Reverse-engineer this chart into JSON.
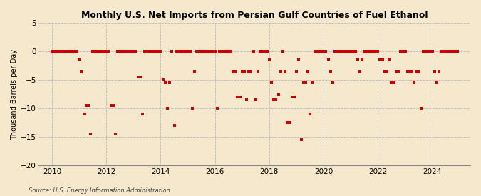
{
  "title": "Monthly U.S. Net Imports from Persian Gulf Countries of Fuel Ethanol",
  "ylabel": "Thousand Barrels per Day",
  "source": "Source: U.S. Energy Information Administration",
  "background_color": "#f5e8cc",
  "plot_bg_color": "#f5e8cc",
  "marker_color": "#cc0000",
  "ylim": [
    -20,
    5
  ],
  "yticks": [
    -20,
    -15,
    -10,
    -5,
    0,
    5
  ],
  "xlim_start": 2009.5,
  "xlim_end": 2025.4,
  "xticks": [
    2010,
    2012,
    2014,
    2016,
    2018,
    2020,
    2022,
    2024
  ],
  "data_points": [
    [
      2010.0,
      0
    ],
    [
      2010.08,
      0
    ],
    [
      2010.17,
      0
    ],
    [
      2010.25,
      0
    ],
    [
      2010.33,
      0
    ],
    [
      2010.42,
      0
    ],
    [
      2010.5,
      0
    ],
    [
      2010.58,
      0
    ],
    [
      2010.67,
      0
    ],
    [
      2010.75,
      0
    ],
    [
      2010.83,
      0
    ],
    [
      2010.92,
      0
    ],
    [
      2011.0,
      -1.5
    ],
    [
      2011.08,
      -3.5
    ],
    [
      2011.17,
      -11
    ],
    [
      2011.25,
      -9.5
    ],
    [
      2011.33,
      -9.5
    ],
    [
      2011.42,
      -14.5
    ],
    [
      2011.5,
      0
    ],
    [
      2011.58,
      0
    ],
    [
      2011.67,
      0
    ],
    [
      2011.75,
      0
    ],
    [
      2011.83,
      0
    ],
    [
      2011.92,
      0
    ],
    [
      2012.0,
      0
    ],
    [
      2012.08,
      0
    ],
    [
      2012.17,
      -9.5
    ],
    [
      2012.25,
      -9.5
    ],
    [
      2012.33,
      -14.5
    ],
    [
      2012.42,
      0
    ],
    [
      2012.5,
      0
    ],
    [
      2012.58,
      0
    ],
    [
      2012.67,
      0
    ],
    [
      2012.75,
      0
    ],
    [
      2012.83,
      0
    ],
    [
      2012.92,
      0
    ],
    [
      2013.0,
      0
    ],
    [
      2013.08,
      0
    ],
    [
      2013.17,
      -4.5
    ],
    [
      2013.25,
      -4.5
    ],
    [
      2013.33,
      -11
    ],
    [
      2013.42,
      0
    ],
    [
      2013.5,
      0
    ],
    [
      2013.58,
      0
    ],
    [
      2013.67,
      0
    ],
    [
      2013.75,
      0
    ],
    [
      2013.83,
      0
    ],
    [
      2013.92,
      0
    ],
    [
      2014.0,
      0
    ],
    [
      2014.08,
      -5
    ],
    [
      2014.17,
      -5.5
    ],
    [
      2014.25,
      -10
    ],
    [
      2014.33,
      -5.5
    ],
    [
      2014.42,
      0
    ],
    [
      2014.5,
      -13
    ],
    [
      2014.58,
      0
    ],
    [
      2014.67,
      0
    ],
    [
      2014.75,
      0
    ],
    [
      2014.83,
      0
    ],
    [
      2014.92,
      0
    ],
    [
      2015.0,
      0
    ],
    [
      2015.08,
      0
    ],
    [
      2015.17,
      -10
    ],
    [
      2015.25,
      -3.5
    ],
    [
      2015.33,
      0
    ],
    [
      2015.42,
      0
    ],
    [
      2015.5,
      0
    ],
    [
      2015.58,
      0
    ],
    [
      2015.67,
      0
    ],
    [
      2015.75,
      0
    ],
    [
      2015.83,
      0
    ],
    [
      2015.92,
      0
    ],
    [
      2016.0,
      0
    ],
    [
      2016.08,
      -10
    ],
    [
      2016.17,
      0
    ],
    [
      2016.25,
      0
    ],
    [
      2016.33,
      0
    ],
    [
      2016.42,
      0
    ],
    [
      2016.5,
      0
    ],
    [
      2016.58,
      0
    ],
    [
      2016.67,
      -3.5
    ],
    [
      2016.75,
      -3.5
    ],
    [
      2016.83,
      -8
    ],
    [
      2016.92,
      -8
    ],
    [
      2017.0,
      -3.5
    ],
    [
      2017.08,
      -3.5
    ],
    [
      2017.17,
      -8.5
    ],
    [
      2017.25,
      -3.5
    ],
    [
      2017.33,
      -3.5
    ],
    [
      2017.42,
      0
    ],
    [
      2017.5,
      -8.5
    ],
    [
      2017.58,
      -3.5
    ],
    [
      2017.67,
      0
    ],
    [
      2017.75,
      0
    ],
    [
      2017.83,
      0
    ],
    [
      2017.92,
      0
    ],
    [
      2018.0,
      -1.5
    ],
    [
      2018.08,
      -5.5
    ],
    [
      2018.17,
      -8.5
    ],
    [
      2018.25,
      -8.5
    ],
    [
      2018.33,
      -7.5
    ],
    [
      2018.42,
      -3.5
    ],
    [
      2018.5,
      0
    ],
    [
      2018.58,
      -3.5
    ],
    [
      2018.67,
      -12.5
    ],
    [
      2018.75,
      -12.5
    ],
    [
      2018.83,
      -8
    ],
    [
      2018.92,
      -8
    ],
    [
      2019.0,
      -3.5
    ],
    [
      2019.08,
      -1.5
    ],
    [
      2019.17,
      -15.5
    ],
    [
      2019.25,
      -5.5
    ],
    [
      2019.33,
      -5.5
    ],
    [
      2019.42,
      -3.5
    ],
    [
      2019.5,
      -11
    ],
    [
      2019.58,
      -5.5
    ],
    [
      2019.67,
      0
    ],
    [
      2019.75,
      0
    ],
    [
      2019.83,
      0
    ],
    [
      2019.92,
      0
    ],
    [
      2020.0,
      0
    ],
    [
      2020.08,
      0
    ],
    [
      2020.17,
      -1.5
    ],
    [
      2020.25,
      -3.5
    ],
    [
      2020.33,
      -5.5
    ],
    [
      2020.42,
      0
    ],
    [
      2020.5,
      0
    ],
    [
      2020.58,
      0
    ],
    [
      2020.67,
      0
    ],
    [
      2020.75,
      0
    ],
    [
      2020.83,
      0
    ],
    [
      2020.92,
      0
    ],
    [
      2021.0,
      0
    ],
    [
      2021.08,
      0
    ],
    [
      2021.17,
      0
    ],
    [
      2021.25,
      -1.5
    ],
    [
      2021.33,
      -3.5
    ],
    [
      2021.42,
      -1.5
    ],
    [
      2021.5,
      0
    ],
    [
      2021.58,
      0
    ],
    [
      2021.67,
      0
    ],
    [
      2021.75,
      0
    ],
    [
      2021.83,
      0
    ],
    [
      2021.92,
      0
    ],
    [
      2022.0,
      0
    ],
    [
      2022.08,
      -1.5
    ],
    [
      2022.17,
      -1.5
    ],
    [
      2022.25,
      -3.5
    ],
    [
      2022.33,
      -3.5
    ],
    [
      2022.42,
      -1.5
    ],
    [
      2022.5,
      -5.5
    ],
    [
      2022.58,
      -5.5
    ],
    [
      2022.67,
      -3.5
    ],
    [
      2022.75,
      -3.5
    ],
    [
      2022.83,
      0
    ],
    [
      2022.92,
      0
    ],
    [
      2023.0,
      0
    ],
    [
      2023.08,
      -3.5
    ],
    [
      2023.17,
      -3.5
    ],
    [
      2023.25,
      -3.5
    ],
    [
      2023.33,
      -5.5
    ],
    [
      2023.42,
      -3.5
    ],
    [
      2023.5,
      -3.5
    ],
    [
      2023.58,
      -10
    ],
    [
      2023.67,
      0
    ],
    [
      2023.75,
      0
    ],
    [
      2023.83,
      0
    ],
    [
      2023.92,
      0
    ],
    [
      2024.0,
      0
    ],
    [
      2024.08,
      -3.5
    ],
    [
      2024.17,
      -5.5
    ],
    [
      2024.25,
      -3.5
    ],
    [
      2024.33,
      0
    ],
    [
      2024.42,
      0
    ],
    [
      2024.5,
      0
    ],
    [
      2024.58,
      0
    ],
    [
      2024.67,
      0
    ],
    [
      2024.75,
      0
    ],
    [
      2024.83,
      0
    ],
    [
      2024.92,
      0
    ]
  ]
}
